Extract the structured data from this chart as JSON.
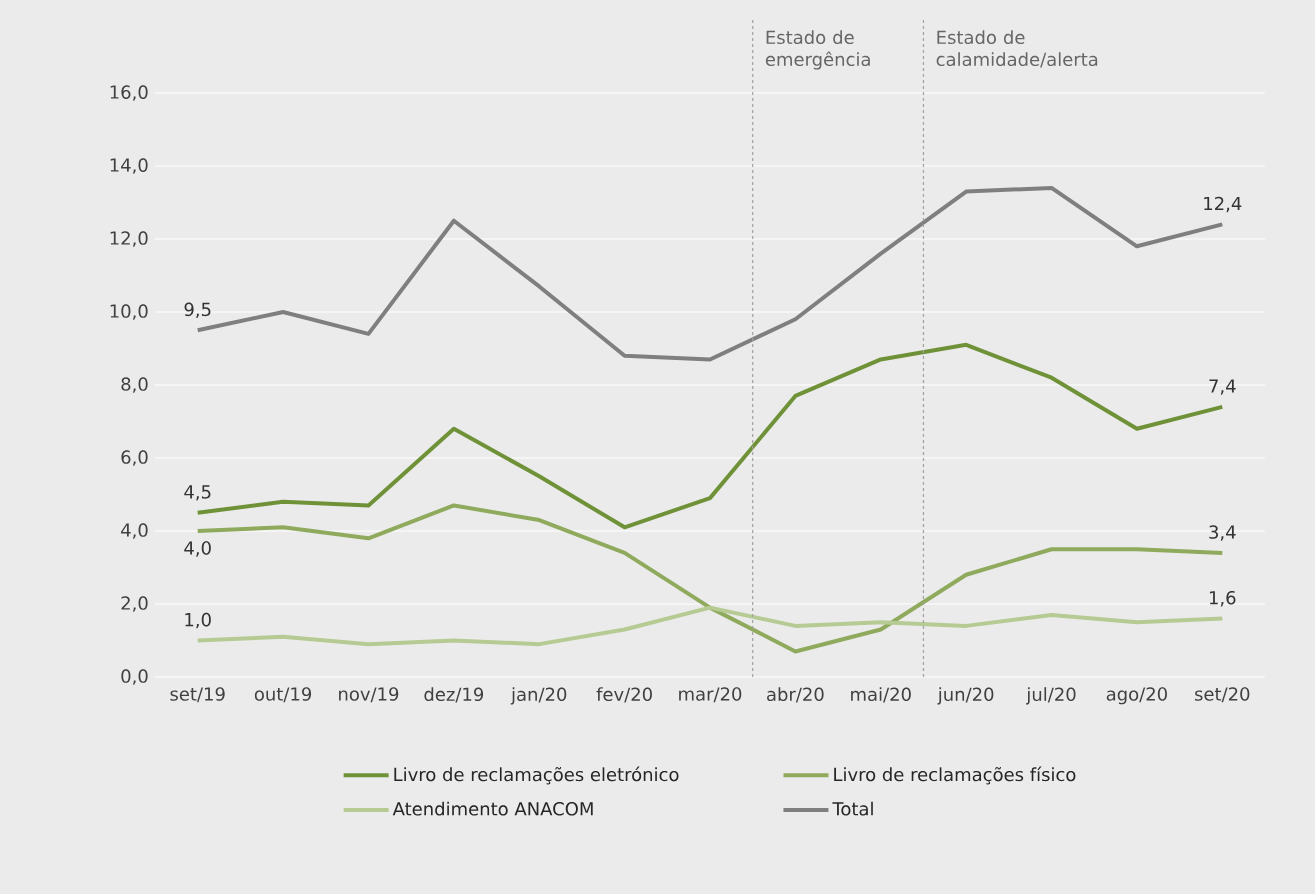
{
  "chart_data": {
    "type": "line",
    "categories": [
      "set/19",
      "out/19",
      "nov/19",
      "dez/19",
      "jan/20",
      "fev/20",
      "mar/20",
      "abr/20",
      "mai/20",
      "jun/20",
      "jul/20",
      "ago/20",
      "set/20"
    ],
    "series": [
      {
        "name": "Livro de reclamações eletrónico",
        "color": "#6f9238",
        "values": [
          4.5,
          4.8,
          4.7,
          6.8,
          5.5,
          4.1,
          4.9,
          7.7,
          8.7,
          9.1,
          8.2,
          6.8,
          7.4
        ],
        "value_labels": [
          "4,5",
          null,
          null,
          null,
          null,
          null,
          null,
          null,
          null,
          null,
          null,
          null,
          "7,4"
        ]
      },
      {
        "name": "Livro de reclamações físico",
        "color": "#8faa5c",
        "values": [
          4.0,
          4.1,
          3.8,
          4.7,
          4.3,
          3.4,
          1.9,
          0.7,
          1.3,
          2.8,
          3.5,
          3.5,
          3.4
        ],
        "value_labels": [
          "4,0",
          null,
          null,
          null,
          null,
          null,
          null,
          null,
          null,
          null,
          null,
          null,
          "3,4"
        ]
      },
      {
        "name": "Atendimento ANACOM",
        "color": "#b5cb93",
        "values": [
          1.0,
          1.1,
          0.9,
          1.0,
          0.9,
          1.3,
          1.9,
          1.4,
          1.5,
          1.4,
          1.7,
          1.5,
          1.6
        ],
        "value_labels": [
          "1,0",
          null,
          null,
          null,
          null,
          null,
          null,
          null,
          null,
          null,
          null,
          null,
          "1,6"
        ]
      },
      {
        "name": "Total",
        "color": "#7f7f7f",
        "values": [
          9.5,
          10.0,
          9.4,
          12.5,
          10.7,
          8.8,
          8.7,
          9.8,
          11.6,
          13.3,
          13.4,
          11.8,
          12.4
        ],
        "value_labels": [
          "9,5",
          null,
          null,
          null,
          null,
          null,
          null,
          null,
          null,
          null,
          null,
          null,
          "12,4"
        ]
      }
    ],
    "ylim": [
      0,
      18
    ],
    "yticks": [
      {
        "value": 0,
        "label": "0,0"
      },
      {
        "value": 2,
        "label": "2,0"
      },
      {
        "value": 4,
        "label": "4,0"
      },
      {
        "value": 6,
        "label": "6,0"
      },
      {
        "value": 8,
        "label": "8,0"
      },
      {
        "value": 10,
        "label": "10,0"
      },
      {
        "value": 12,
        "label": "12,0"
      },
      {
        "value": 14,
        "label": "14,0"
      },
      {
        "value": 16,
        "label": "16,0"
      }
    ],
    "grid": "y",
    "legend": "bottom",
    "marker": "none",
    "line_style": "solid",
    "annotations": [
      "Estado de emergência",
      "Estado de calamidade/alerta"
    ]
  }
}
